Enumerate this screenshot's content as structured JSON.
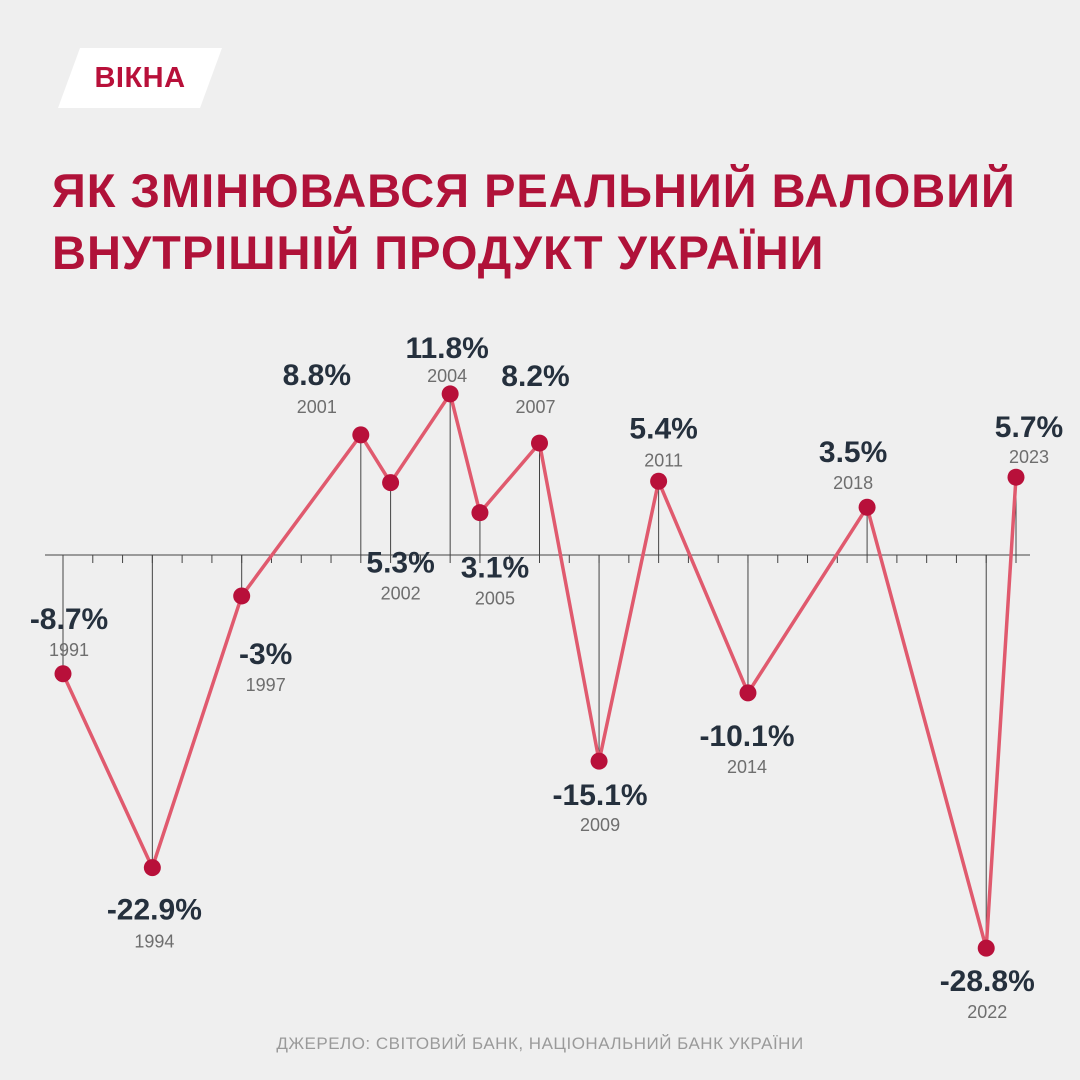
{
  "logo": {
    "text": "ВІКНА"
  },
  "title": {
    "line1": "ЯК ЗМІНЮВАВСЯ РЕАЛЬНИЙ ВАЛОВИЙ",
    "line2": "ВНУТРІШНІЙ ПРОДУКТ УКРАЇНИ"
  },
  "source": "ДЖЕРЕЛО: СВІТОВИЙ БАНК, НАЦІОНАЛЬНИЙ БАНК УКРАЇНИ",
  "colors": {
    "accent": "#b01239",
    "line": "#e05a6e",
    "marker": "#b8103a",
    "value_text": "#25303d",
    "year_text": "#6e6e6e",
    "axis": "#444444"
  },
  "chart_data": {
    "type": "line",
    "title": "ЯК ЗМІНЮВАВСЯ РЕАЛЬНИЙ ВАЛОВИЙ ВНУТРІШНІЙ ПРОДУКТ УКРАЇНИ",
    "x_range": [
      1991,
      2023
    ],
    "ylim": [
      -30,
      13
    ],
    "grid": false,
    "points": [
      {
        "year": 1991,
        "value": -8.7,
        "value_label": "-8.7%",
        "year_label": "1991"
      },
      {
        "year": 1994,
        "value": -22.9,
        "value_label": "-22.9%",
        "year_label": "1994"
      },
      {
        "year": 1997,
        "value": -3.0,
        "value_label": "-3%",
        "year_label": "1997"
      },
      {
        "year": 2001,
        "value": 8.8,
        "value_label": "8.8%",
        "year_label": "2001"
      },
      {
        "year": 2002,
        "value": 5.3,
        "value_label": "5.3%",
        "year_label": "2002"
      },
      {
        "year": 2004,
        "value": 11.8,
        "value_label": "11.8%",
        "year_label": "2004"
      },
      {
        "year": 2005,
        "value": 3.1,
        "value_label": "3.1%",
        "year_label": "2005"
      },
      {
        "year": 2007,
        "value": 8.2,
        "value_label": "8.2%",
        "year_label": "2007"
      },
      {
        "year": 2009,
        "value": -15.1,
        "value_label": "-15.1%",
        "year_label": "2009"
      },
      {
        "year": 2011,
        "value": 5.4,
        "value_label": "5.4%",
        "year_label": "2011"
      },
      {
        "year": 2014,
        "value": -10.1,
        "value_label": "-10.1%",
        "year_label": "2014"
      },
      {
        "year": 2018,
        "value": 3.5,
        "value_label": "3.5%",
        "year_label": "2018"
      },
      {
        "year": 2022,
        "value": -28.8,
        "value_label": "-28.8%",
        "year_label": "2022"
      },
      {
        "year": 2023,
        "value": 5.7,
        "value_label": "5.7%",
        "year_label": "2023"
      }
    ]
  }
}
